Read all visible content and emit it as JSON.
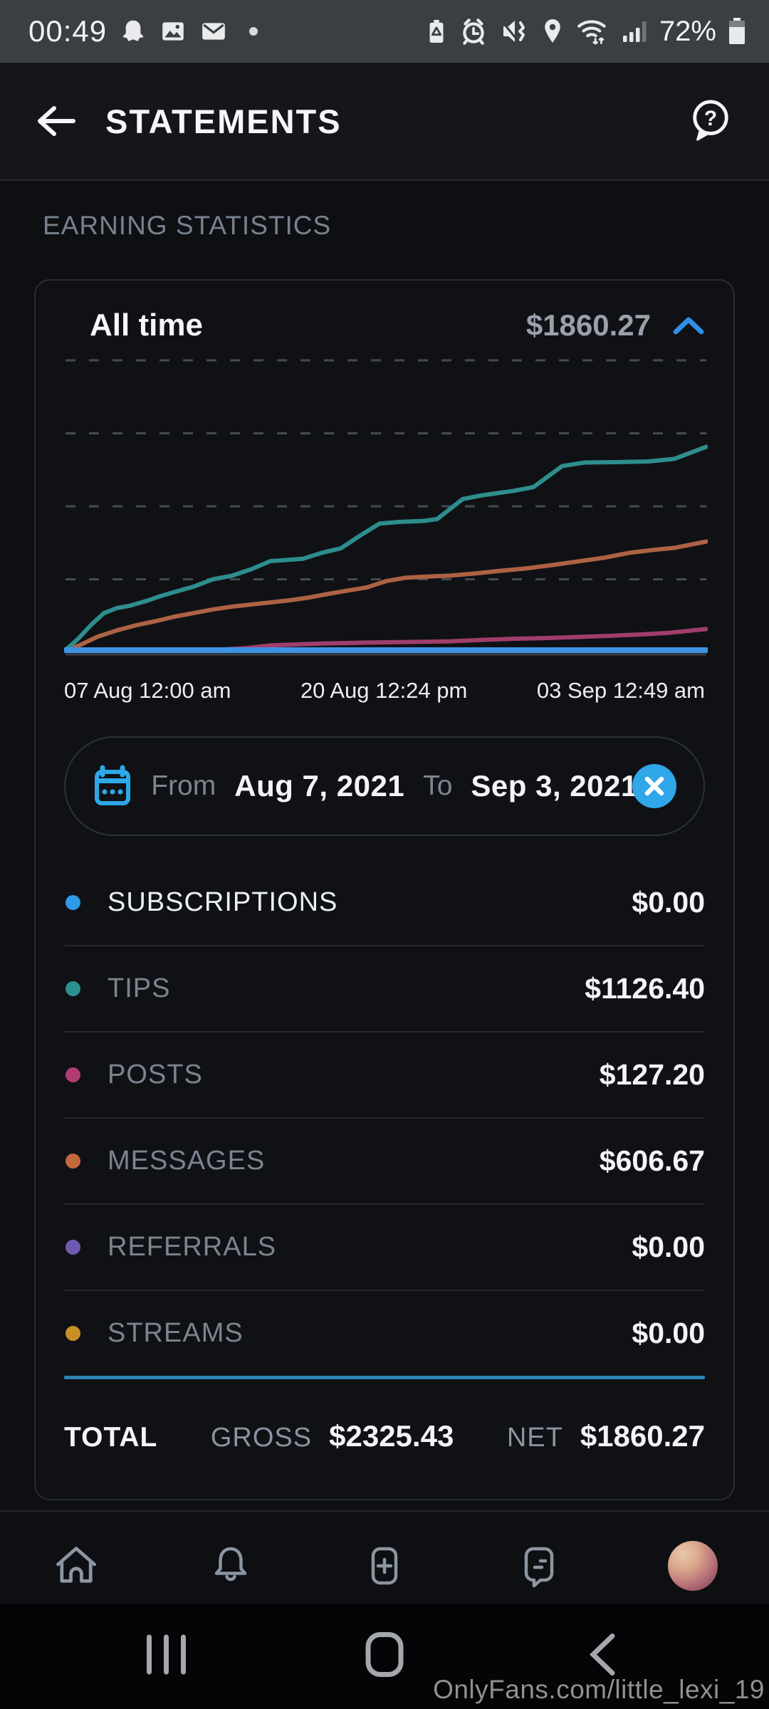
{
  "status_bar": {
    "time": "00:49",
    "battery_percent": "72%",
    "left_icons": [
      "snapchat",
      "gallery",
      "email",
      "notification-dot"
    ],
    "right_icons": [
      "battery-saver",
      "alarm-clock",
      "vibrate-mute",
      "location",
      "wifi",
      "cell-signal",
      "battery"
    ]
  },
  "header": {
    "title": "STATEMENTS"
  },
  "section": {
    "title": "EARNING STATISTICS"
  },
  "card": {
    "period_label": "All time",
    "period_total": "$1860.27"
  },
  "chart_data": {
    "type": "line",
    "title": "Cumulative earnings by category, all time",
    "x_tick_labels": [
      "07 Aug 12:00 am",
      "20 Aug 12:24 pm",
      "03 Sep 12:49 am"
    ],
    "x_range": [
      "Aug 7, 2021 12:00 am",
      "Sep 3, 2021 12:49 am"
    ],
    "y_min": 0,
    "y_max": 1600,
    "gridline_values": [
      400,
      800,
      1200,
      1600
    ],
    "grid_style": "dashed horizontal",
    "legend_position": "list below chart",
    "series": [
      {
        "name": "SUBSCRIPTIONS",
        "total": "$0.00",
        "color": "#3d93e2",
        "dot_color": "#2f9be8",
        "active": true,
        "flat_zero": true,
        "width": 8,
        "points": [
          [
            0,
            0
          ],
          [
            1,
            0
          ]
        ]
      },
      {
        "name": "TIPS",
        "total": "$1126.40",
        "color": "#2e8d8d",
        "dot_color": "#2e8f8f",
        "active": false,
        "flat_zero": false,
        "width": 6,
        "points": [
          [
            0,
            0
          ],
          [
            0.02,
            75
          ],
          [
            0.04,
            150
          ],
          [
            0.06,
            215
          ],
          [
            0.08,
            242
          ],
          [
            0.1,
            255
          ],
          [
            0.125,
            280
          ],
          [
            0.15,
            310
          ],
          [
            0.17,
            330
          ],
          [
            0.2,
            360
          ],
          [
            0.23,
            400
          ],
          [
            0.26,
            420
          ],
          [
            0.29,
            455
          ],
          [
            0.32,
            500
          ],
          [
            0.37,
            512
          ],
          [
            0.4,
            545
          ],
          [
            0.43,
            570
          ],
          [
            0.46,
            640
          ],
          [
            0.49,
            705
          ],
          [
            0.52,
            714
          ],
          [
            0.56,
            720
          ],
          [
            0.58,
            730
          ],
          [
            0.62,
            840
          ],
          [
            0.65,
            860
          ],
          [
            0.7,
            885
          ],
          [
            0.73,
            905
          ],
          [
            0.775,
            1020
          ],
          [
            0.81,
            1040
          ],
          [
            0.86,
            1042
          ],
          [
            0.91,
            1046
          ],
          [
            0.95,
            1060
          ],
          [
            1,
            1126.4
          ]
        ]
      },
      {
        "name": "POSTS",
        "total": "$127.20",
        "color": "#a03e6b",
        "dot_color": "#b03d72",
        "active": false,
        "flat_zero": false,
        "width": 6,
        "points": [
          [
            0,
            2
          ],
          [
            0.15,
            5
          ],
          [
            0.22,
            10
          ],
          [
            0.28,
            22
          ],
          [
            0.32,
            38
          ],
          [
            0.4,
            48
          ],
          [
            0.48,
            54
          ],
          [
            0.55,
            57
          ],
          [
            0.6,
            60
          ],
          [
            0.65,
            68
          ],
          [
            0.7,
            74
          ],
          [
            0.75,
            78
          ],
          [
            0.8,
            84
          ],
          [
            0.85,
            90
          ],
          [
            0.9,
            98
          ],
          [
            0.94,
            106
          ],
          [
            1,
            127.2
          ]
        ]
      },
      {
        "name": "MESSAGES",
        "total": "$606.67",
        "color": "#ad6244",
        "dot_color": "#c4693b",
        "active": false,
        "flat_zero": false,
        "width": 6,
        "points": [
          [
            0,
            0
          ],
          [
            0.02,
            35
          ],
          [
            0.05,
            85
          ],
          [
            0.08,
            120
          ],
          [
            0.11,
            148
          ],
          [
            0.14,
            170
          ],
          [
            0.17,
            195
          ],
          [
            0.2,
            215
          ],
          [
            0.23,
            235
          ],
          [
            0.26,
            250
          ],
          [
            0.29,
            262
          ],
          [
            0.32,
            273
          ],
          [
            0.35,
            285
          ],
          [
            0.38,
            300
          ],
          [
            0.41,
            320
          ],
          [
            0.44,
            338
          ],
          [
            0.47,
            355
          ],
          [
            0.5,
            390
          ],
          [
            0.53,
            408
          ],
          [
            0.56,
            414
          ],
          [
            0.6,
            420
          ],
          [
            0.64,
            432
          ],
          [
            0.68,
            447
          ],
          [
            0.72,
            460
          ],
          [
            0.76,
            478
          ],
          [
            0.8,
            498
          ],
          [
            0.84,
            518
          ],
          [
            0.88,
            545
          ],
          [
            0.92,
            562
          ],
          [
            0.95,
            572
          ],
          [
            1,
            606.67
          ]
        ]
      },
      {
        "name": "REFERRALS",
        "total": "$0.00",
        "color": "#6f5fae",
        "dot_color": "#7059b0",
        "active": false,
        "flat_zero": true,
        "width": 5,
        "points": [
          [
            0,
            0
          ],
          [
            1,
            0
          ]
        ]
      },
      {
        "name": "STREAMS",
        "total": "$0.00",
        "color": "#c28b2a",
        "dot_color": "#c89127",
        "active": false,
        "flat_zero": true,
        "width": 5,
        "points": [
          [
            0,
            0
          ],
          [
            1,
            0
          ]
        ]
      }
    ]
  },
  "date_filter": {
    "from_label": "From",
    "from_value": "Aug 7, 2021",
    "to_label": "To",
    "to_value": "Sep 3, 2021"
  },
  "totals": {
    "label": "TOTAL",
    "gross_label": "GROSS",
    "gross_value": "$2325.43",
    "net_label": "NET",
    "net_value": "$1860.27"
  },
  "bottom_nav": {
    "items": [
      "home",
      "notifications",
      "new-post",
      "messages",
      "profile"
    ]
  },
  "android_nav": {
    "items": [
      "recents",
      "home",
      "back"
    ]
  },
  "watermark": "OnlyFans.com/little_lexi_19",
  "colors": {
    "accent_blue": "#30a7e8",
    "total_separator": "#2b84b4",
    "status_bar_bg": "#3b3e43",
    "page_bg": "#0e0f12",
    "grid_dash": "#454a52",
    "axis_line": "#3a4046",
    "muted_text": "#7b8490"
  }
}
